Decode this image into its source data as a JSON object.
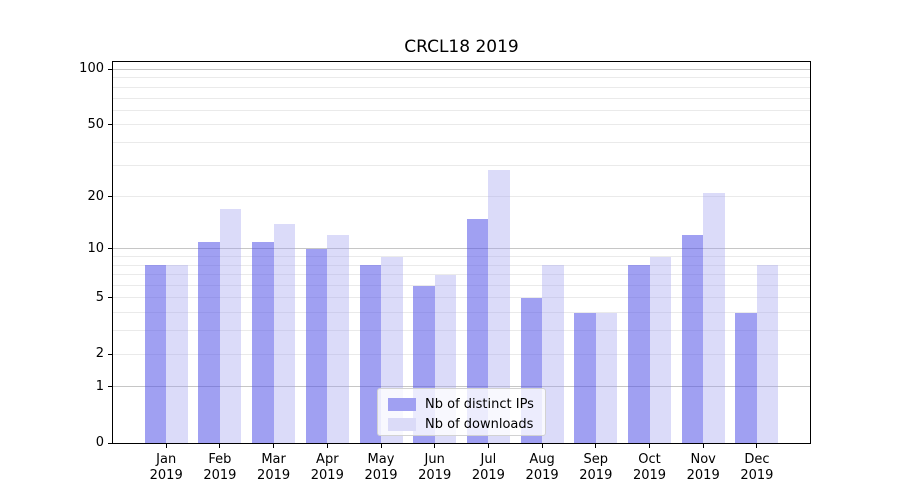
{
  "title": "CRCL18 2019",
  "chart_data": {
    "type": "bar",
    "title": "CRCL18 2019",
    "categories": [
      "Jan",
      "Feb",
      "Mar",
      "Apr",
      "May",
      "Jun",
      "Jul",
      "Aug",
      "Sep",
      "Oct",
      "Nov",
      "Dec"
    ],
    "year_label": "2019",
    "series": [
      {
        "name": "Nb of distinct IPs",
        "color": "#a0a0f2",
        "fill": "rgba(82,82,232,0.55)",
        "values": [
          8,
          11,
          11,
          10,
          8,
          6,
          15,
          5,
          4,
          8,
          12,
          4
        ]
      },
      {
        "name": "Nb of downloads",
        "color": "#dbdbf8",
        "fill": "rgba(160,160,238,0.38)",
        "values": [
          8,
          17,
          14,
          12,
          9,
          7,
          28,
          8,
          4,
          9,
          21,
          8
        ]
      }
    ],
    "yscale": "log1p",
    "ylim": [
      0,
      110
    ],
    "y_ticks": [
      100,
      50,
      20,
      10,
      5,
      2,
      1,
      0
    ],
    "gridlines": {
      "minor": [
        2,
        3,
        4,
        5,
        6,
        7,
        8,
        9,
        20,
        30,
        40,
        50,
        60,
        70,
        80,
        90
      ],
      "major": [
        1,
        10,
        100
      ]
    },
    "grid": true,
    "legend_position": "lower-center"
  },
  "colors": {
    "minor_grid": "#eaeaea",
    "major_grid": "#c6c6c6",
    "spine": "#000000",
    "background": "#ffffff"
  }
}
